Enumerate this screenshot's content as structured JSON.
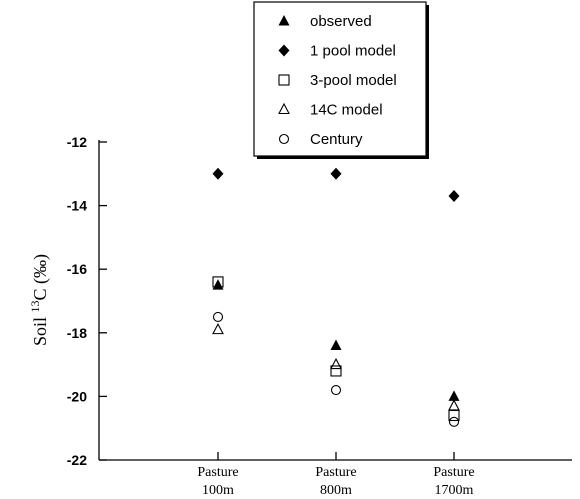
{
  "chart_data": {
    "type": "scatter",
    "title": "",
    "xlabel": "",
    "ylabel_prefix": "Soil ",
    "ylabel_sup": "13",
    "ylabel_suffix": "C (‰)",
    "ylim": [
      -22,
      -12
    ],
    "yticks": [
      -12,
      -14,
      -16,
      -18,
      -20,
      -22
    ],
    "ytick_labels": [
      "-12",
      "-14",
      "-16",
      "-18",
      "-20",
      "-22"
    ],
    "grid": false,
    "legend_position": "top-center",
    "categories": [
      {
        "line1": "Pasture",
        "line2": "100m"
      },
      {
        "line1": "Pasture",
        "line2": "800m"
      },
      {
        "line1": "Pasture",
        "line2": "1700m"
      }
    ],
    "series": [
      {
        "name": "observed",
        "marker": "filled-triangle",
        "values": [
          -16.5,
          -18.4,
          -20.0
        ]
      },
      {
        "name": "1 pool model",
        "marker": "filled-diamond",
        "values": [
          -13.0,
          -13.0,
          -13.7
        ]
      },
      {
        "name": "3-pool model",
        "marker": "open-square",
        "values": [
          -16.4,
          -19.2,
          -20.6
        ]
      },
      {
        "name": "14C model",
        "marker": "open-triangle",
        "values": [
          -17.9,
          -19.0,
          -20.3
        ]
      },
      {
        "name": "Century",
        "marker": "open-circle",
        "values": [
          -17.5,
          -19.8,
          -20.8
        ]
      }
    ]
  }
}
